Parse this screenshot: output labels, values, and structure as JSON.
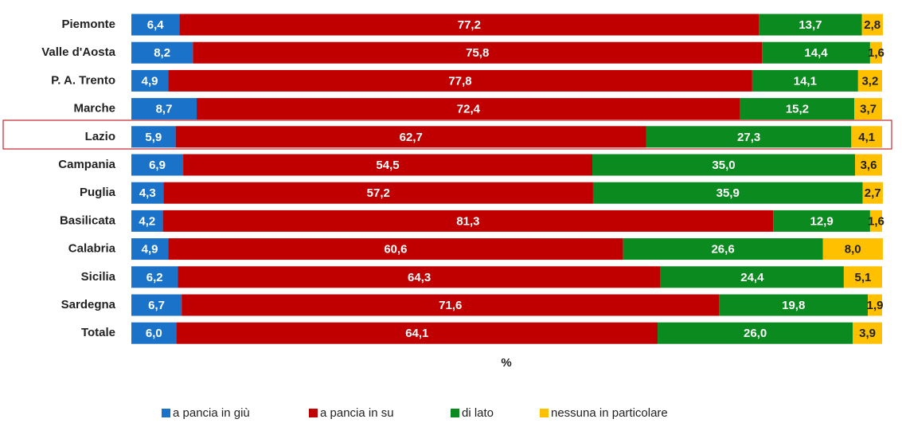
{
  "chart_data": {
    "type": "stacked_barh",
    "categories": [
      "Piemonte",
      "Valle d'Aosta",
      "P. A. Trento",
      "Marche",
      "Lazio",
      "Campania",
      "Puglia",
      "Basilicata",
      "Calabria",
      "Sicilia",
      "Sardegna",
      "Totale"
    ],
    "series": [
      {
        "name": "a pancia in giù",
        "color": "#1a73c8",
        "values": [
          6.4,
          8.2,
          4.9,
          8.7,
          5.9,
          6.9,
          4.3,
          4.2,
          4.9,
          6.2,
          6.7,
          6.0
        ],
        "value_labels": [
          "6,4",
          "8,2",
          "4,9",
          "8,7",
          "5,9",
          "6,9",
          "4,3",
          "4,2",
          "4,9",
          "6,2",
          "6,7",
          "6,0"
        ]
      },
      {
        "name": "a pancia in su",
        "color": "#c00000",
        "values": [
          77.2,
          75.8,
          77.8,
          72.4,
          62.7,
          54.5,
          57.2,
          81.3,
          60.6,
          64.3,
          71.6,
          64.1
        ],
        "value_labels": [
          "77,2",
          "75,8",
          "77,8",
          "72,4",
          "62,7",
          "54,5",
          "57,2",
          "81,3",
          "60,6",
          "64,3",
          "71,6",
          "64,1"
        ]
      },
      {
        "name": "di lato",
        "color": "#0b8a1f",
        "values": [
          13.7,
          14.4,
          14.1,
          15.2,
          27.3,
          35.0,
          35.9,
          12.9,
          26.6,
          24.4,
          19.8,
          26.0
        ],
        "value_labels": [
          "13,7",
          "14,4",
          "14,1",
          "15,2",
          "27,3",
          "35,0",
          "35,9",
          "12,9",
          "26,6",
          "24,4",
          "19,8",
          "26,0"
        ]
      },
      {
        "name": "nessuna in particolare",
        "color": "#ffc000",
        "values": [
          2.8,
          1.6,
          3.2,
          3.7,
          4.1,
          3.6,
          2.7,
          1.6,
          8.0,
          5.1,
          1.9,
          3.9
        ],
        "value_labels": [
          "2,8",
          "1,6",
          "3,2",
          "3,7",
          "4,1",
          "3,6",
          "2,7",
          "1,6",
          "8,0",
          "5,1",
          "1,9",
          "3,9"
        ]
      }
    ],
    "x_label": "%",
    "xlim": [
      0,
      100
    ]
  }
}
